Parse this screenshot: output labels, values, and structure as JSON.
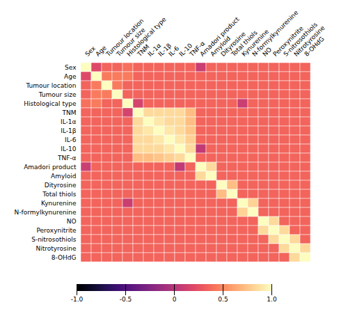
{
  "chart_data": {
    "type": "heatmap",
    "categories": [
      "Sex",
      "Age",
      "Tumour location",
      "Tumour size",
      "Histological type",
      "TNM",
      "IL-1α",
      "IL-1β",
      "IL-6",
      "IL-10",
      "TNF-α",
      "Amadori product",
      "Amyloid",
      "Dityrosine",
      "Total thiols",
      "Kynurenine",
      "N-formylkynurenine",
      "NO",
      "Peroxynitrite",
      "S-nitrosothiols",
      "Nitrotyrosine",
      "8-OHdG"
    ],
    "values": [
      [
        1.0,
        0.2,
        0.35,
        0.35,
        0.4,
        0.35,
        0.35,
        0.35,
        0.35,
        0.35,
        0.35,
        0.1,
        0.35,
        0.35,
        0.35,
        0.35,
        0.35,
        0.35,
        0.35,
        0.35,
        0.35,
        0.35
      ],
      [
        0.2,
        1.0,
        0.45,
        0.45,
        0.45,
        0.35,
        0.35,
        0.35,
        0.35,
        0.35,
        0.35,
        0.35,
        0.35,
        0.35,
        0.35,
        0.35,
        0.35,
        0.35,
        0.35,
        0.35,
        0.35,
        0.35
      ],
      [
        0.35,
        0.45,
        1.0,
        0.45,
        0.35,
        0.35,
        0.35,
        0.35,
        0.35,
        0.35,
        0.35,
        0.35,
        0.35,
        0.35,
        0.35,
        0.35,
        0.35,
        0.35,
        0.35,
        0.35,
        0.35,
        0.35
      ],
      [
        0.35,
        0.45,
        0.45,
        1.0,
        0.35,
        0.35,
        0.35,
        0.35,
        0.35,
        0.35,
        0.35,
        0.35,
        0.35,
        0.35,
        0.35,
        0.35,
        0.35,
        0.35,
        0.35,
        0.35,
        0.35,
        0.35
      ],
      [
        0.4,
        0.45,
        0.35,
        0.35,
        1.0,
        0.15,
        0.35,
        0.35,
        0.35,
        0.35,
        0.35,
        0.35,
        0.35,
        0.35,
        0.35,
        0.1,
        0.35,
        0.35,
        0.35,
        0.35,
        0.35,
        0.35
      ],
      [
        0.35,
        0.35,
        0.35,
        0.35,
        0.15,
        1.0,
        0.85,
        0.85,
        0.85,
        0.85,
        0.72,
        0.35,
        0.35,
        0.35,
        0.35,
        0.35,
        0.35,
        0.35,
        0.35,
        0.35,
        0.35,
        0.35
      ],
      [
        0.35,
        0.35,
        0.35,
        0.35,
        0.35,
        0.85,
        1.0,
        0.9,
        0.85,
        0.85,
        0.72,
        0.35,
        0.35,
        0.35,
        0.35,
        0.35,
        0.35,
        0.35,
        0.35,
        0.35,
        0.35,
        0.35
      ],
      [
        0.35,
        0.35,
        0.35,
        0.35,
        0.35,
        0.85,
        0.9,
        1.0,
        0.9,
        0.85,
        0.75,
        0.35,
        0.35,
        0.35,
        0.35,
        0.35,
        0.35,
        0.35,
        0.35,
        0.35,
        0.35,
        0.35
      ],
      [
        0.35,
        0.35,
        0.35,
        0.35,
        0.35,
        0.85,
        0.85,
        0.9,
        1.0,
        0.9,
        0.8,
        0.35,
        0.35,
        0.35,
        0.35,
        0.35,
        0.35,
        0.35,
        0.35,
        0.35,
        0.35,
        0.35
      ],
      [
        0.35,
        0.35,
        0.35,
        0.35,
        0.35,
        0.85,
        0.85,
        0.85,
        0.9,
        1.0,
        0.85,
        0.05,
        0.35,
        0.35,
        0.35,
        0.35,
        0.35,
        0.35,
        0.35,
        0.35,
        0.35,
        0.35
      ],
      [
        0.35,
        0.35,
        0.35,
        0.35,
        0.35,
        0.72,
        0.72,
        0.75,
        0.8,
        0.85,
        1.0,
        0.35,
        0.35,
        0.35,
        0.35,
        0.35,
        0.35,
        0.35,
        0.35,
        0.35,
        0.35,
        0.35
      ],
      [
        0.1,
        0.35,
        0.35,
        0.35,
        0.35,
        0.35,
        0.35,
        0.35,
        0.35,
        0.05,
        0.35,
        1.0,
        0.85,
        0.35,
        0.35,
        0.35,
        0.35,
        0.35,
        0.35,
        0.35,
        0.35,
        0.35
      ],
      [
        0.35,
        0.35,
        0.35,
        0.35,
        0.35,
        0.35,
        0.35,
        0.35,
        0.35,
        0.35,
        0.35,
        0.85,
        1.0,
        0.35,
        0.35,
        0.35,
        0.35,
        0.35,
        0.35,
        0.35,
        0.35,
        0.35
      ],
      [
        0.35,
        0.35,
        0.35,
        0.35,
        0.35,
        0.35,
        0.35,
        0.35,
        0.35,
        0.35,
        0.35,
        0.35,
        0.35,
        1.0,
        0.72,
        0.35,
        0.35,
        0.35,
        0.35,
        0.35,
        0.35,
        0.35
      ],
      [
        0.35,
        0.35,
        0.35,
        0.35,
        0.35,
        0.35,
        0.35,
        0.35,
        0.35,
        0.35,
        0.35,
        0.35,
        0.35,
        0.72,
        1.0,
        0.35,
        0.35,
        0.35,
        0.35,
        0.35,
        0.35,
        0.35
      ],
      [
        0.35,
        0.35,
        0.35,
        0.35,
        0.1,
        0.35,
        0.35,
        0.35,
        0.35,
        0.35,
        0.35,
        0.35,
        0.35,
        0.35,
        0.35,
        1.0,
        0.82,
        0.35,
        0.35,
        0.35,
        0.35,
        0.35
      ],
      [
        0.35,
        0.35,
        0.35,
        0.35,
        0.35,
        0.35,
        0.35,
        0.35,
        0.35,
        0.35,
        0.35,
        0.35,
        0.35,
        0.35,
        0.35,
        0.82,
        1.0,
        0.35,
        0.35,
        0.35,
        0.35,
        0.35
      ],
      [
        0.35,
        0.35,
        0.35,
        0.35,
        0.35,
        0.35,
        0.35,
        0.35,
        0.35,
        0.35,
        0.35,
        0.35,
        0.35,
        0.35,
        0.35,
        0.35,
        0.35,
        1.0,
        0.85,
        0.35,
        0.35,
        0.35
      ],
      [
        0.35,
        0.35,
        0.35,
        0.35,
        0.35,
        0.35,
        0.35,
        0.35,
        0.35,
        0.35,
        0.35,
        0.35,
        0.35,
        0.35,
        0.35,
        0.35,
        0.35,
        0.85,
        1.0,
        0.85,
        0.35,
        0.35
      ],
      [
        0.35,
        0.35,
        0.35,
        0.35,
        0.35,
        0.35,
        0.35,
        0.35,
        0.35,
        0.35,
        0.35,
        0.35,
        0.35,
        0.35,
        0.35,
        0.35,
        0.35,
        0.35,
        0.85,
        1.0,
        0.85,
        0.35
      ],
      [
        0.35,
        0.35,
        0.35,
        0.35,
        0.35,
        0.35,
        0.35,
        0.35,
        0.35,
        0.35,
        0.35,
        0.35,
        0.35,
        0.35,
        0.35,
        0.35,
        0.35,
        0.35,
        0.35,
        0.85,
        1.0,
        0.85
      ],
      [
        0.35,
        0.35,
        0.35,
        0.35,
        0.35,
        0.35,
        0.35,
        0.35,
        0.35,
        0.35,
        0.35,
        0.35,
        0.35,
        0.35,
        0.35,
        0.35,
        0.35,
        0.35,
        0.35,
        0.35,
        0.85,
        1.0
      ]
    ],
    "colorbar_lim": [
      -1.0,
      1.0
    ],
    "colorbar_ticks": [
      {
        "value": 1.0,
        "label": "1.0"
      },
      0.5,
      0,
      -0.5,
      {
        "value": -1.0,
        "label": "-1.0"
      }
    ],
    "grid": true
  }
}
